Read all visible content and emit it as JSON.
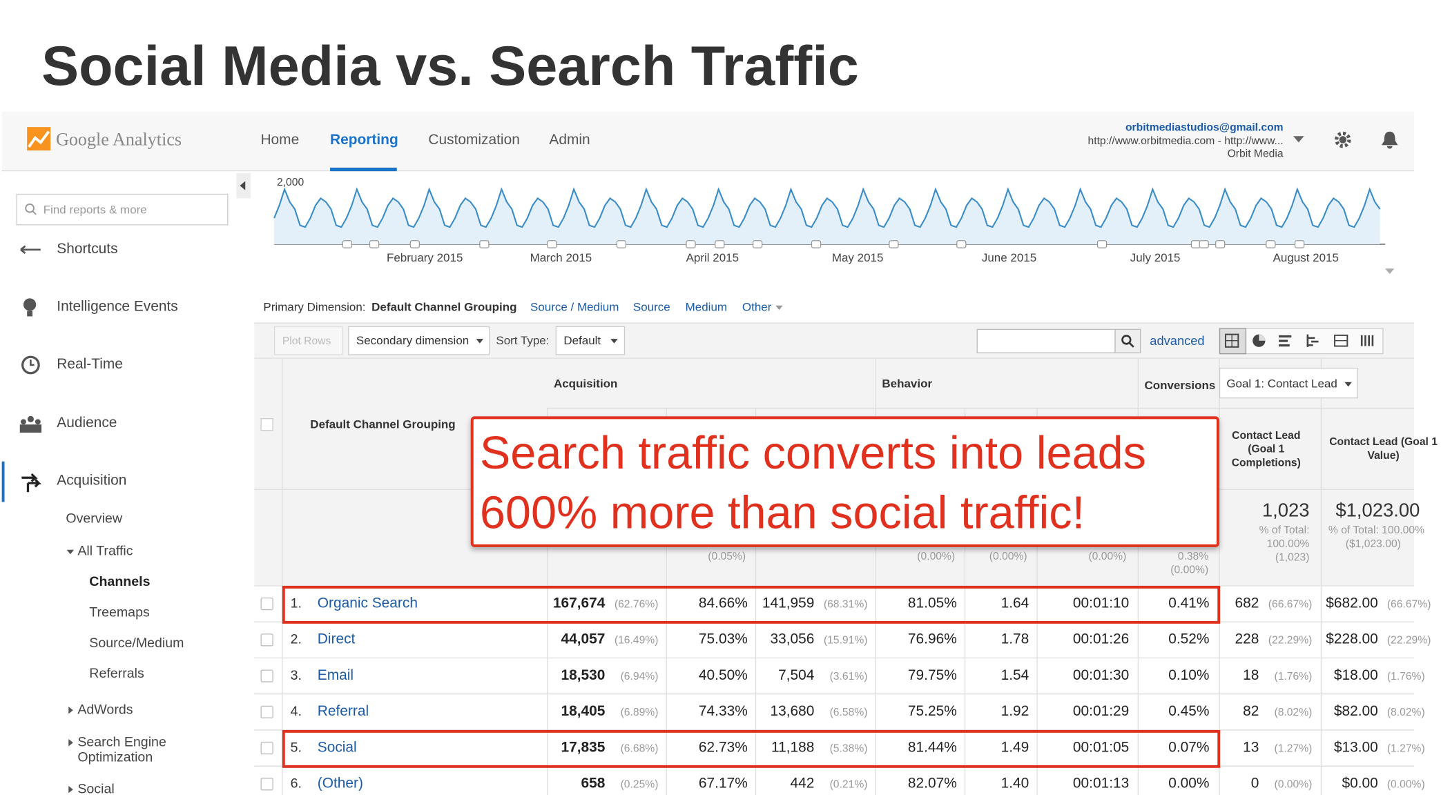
{
  "slide_title": "Social Media vs. Search Traffic",
  "header": {
    "logo": "Google Analytics",
    "nav": [
      "Home",
      "Reporting",
      "Customization",
      "Admin"
    ],
    "account": {
      "email": "orbitmediastudios@gmail.com",
      "url": "http://www.orbitmedia.com - http://www...",
      "name": "Orbit Media"
    }
  },
  "sidebar": {
    "search_placeholder": "Find reports & more",
    "items": [
      "Shortcuts",
      "Intelligence Events",
      "Real-Time",
      "Audience",
      "Acquisition"
    ],
    "subitems": [
      "Overview",
      "All Traffic",
      "Channels",
      "Treemaps",
      "Source/Medium",
      "Referrals",
      "AdWords",
      "Search Engine Optimization",
      "Social"
    ]
  },
  "trend": {
    "ytick": "2,000",
    "months": [
      "February 2015",
      "March 2015",
      "April 2015",
      "May 2015",
      "June 2015",
      "July 2015",
      "August 2015"
    ]
  },
  "primary_dimension": {
    "label": "Primary Dimension:",
    "options": [
      "Default Channel Grouping",
      "Source / Medium",
      "Source",
      "Medium",
      "Other"
    ]
  },
  "toolbar": {
    "plot_rows": "Plot Rows",
    "secondary": "Secondary dimension",
    "sort_label": "Sort Type:",
    "sort_value": "Default",
    "advanced": "advanced"
  },
  "table": {
    "groups": [
      "Acquisition",
      "Behavior",
      "Conversions"
    ],
    "goal_select": "Goal 1: Contact Lead",
    "dimension_header": "Default Channel Grouping",
    "col_headers": [
      "Contact Lead (Goal 1 Completions)",
      "Contact Lead (Goal 1 Value)"
    ],
    "totals": [
      "(0.05%)",
      "(0.00%)",
      "(0.00%)",
      "(0.00%)",
      "0.38%",
      "(0.00%)",
      "1,023",
      "% of Total:",
      "100.00%",
      "(1,023)",
      "$1,023.00",
      "% of Total: 100.00%",
      "($1,023.00)"
    ],
    "rows": [
      [
        "1.",
        "Organic Search",
        "167,674",
        "(62.76%)",
        "84.66%",
        "141,959",
        "(68.31%)",
        "81.05%",
        "1.64",
        "00:01:10",
        "0.41%",
        "682",
        "(66.67%)",
        "$682.00",
        "(66.67%)"
      ],
      [
        "2.",
        "Direct",
        "44,057",
        "(16.49%)",
        "75.03%",
        "33,056",
        "(15.91%)",
        "76.96%",
        "1.78",
        "00:01:26",
        "0.52%",
        "228",
        "(22.29%)",
        "$228.00",
        "(22.29%)"
      ],
      [
        "3.",
        "Email",
        "18,530",
        "(6.94%)",
        "40.50%",
        "7,504",
        "(3.61%)",
        "79.75%",
        "1.54",
        "00:01:30",
        "0.10%",
        "18",
        "(1.76%)",
        "$18.00",
        "(1.76%)"
      ],
      [
        "4.",
        "Referral",
        "18,405",
        "(6.89%)",
        "74.33%",
        "13,680",
        "(6.58%)",
        "75.25%",
        "1.92",
        "00:01:29",
        "0.45%",
        "82",
        "(8.02%)",
        "$82.00",
        "(8.02%)"
      ],
      [
        "5.",
        "Social",
        "17,835",
        "(6.68%)",
        "62.73%",
        "11,188",
        "(5.38%)",
        "81.44%",
        "1.49",
        "00:01:05",
        "0.07%",
        "13",
        "(1.27%)",
        "$13.00",
        "(1.27%)"
      ],
      [
        "6.",
        "(Other)",
        "658",
        "(0.25%)",
        "67.17%",
        "442",
        "(0.21%)",
        "82.07%",
        "1.40",
        "00:01:13",
        "0.00%",
        "0",
        "(0.00%)",
        "$0.00",
        "(0.00%)"
      ]
    ]
  },
  "callout": [
    "Search traffic converts into leads",
    "600% more than social traffic!"
  ]
}
